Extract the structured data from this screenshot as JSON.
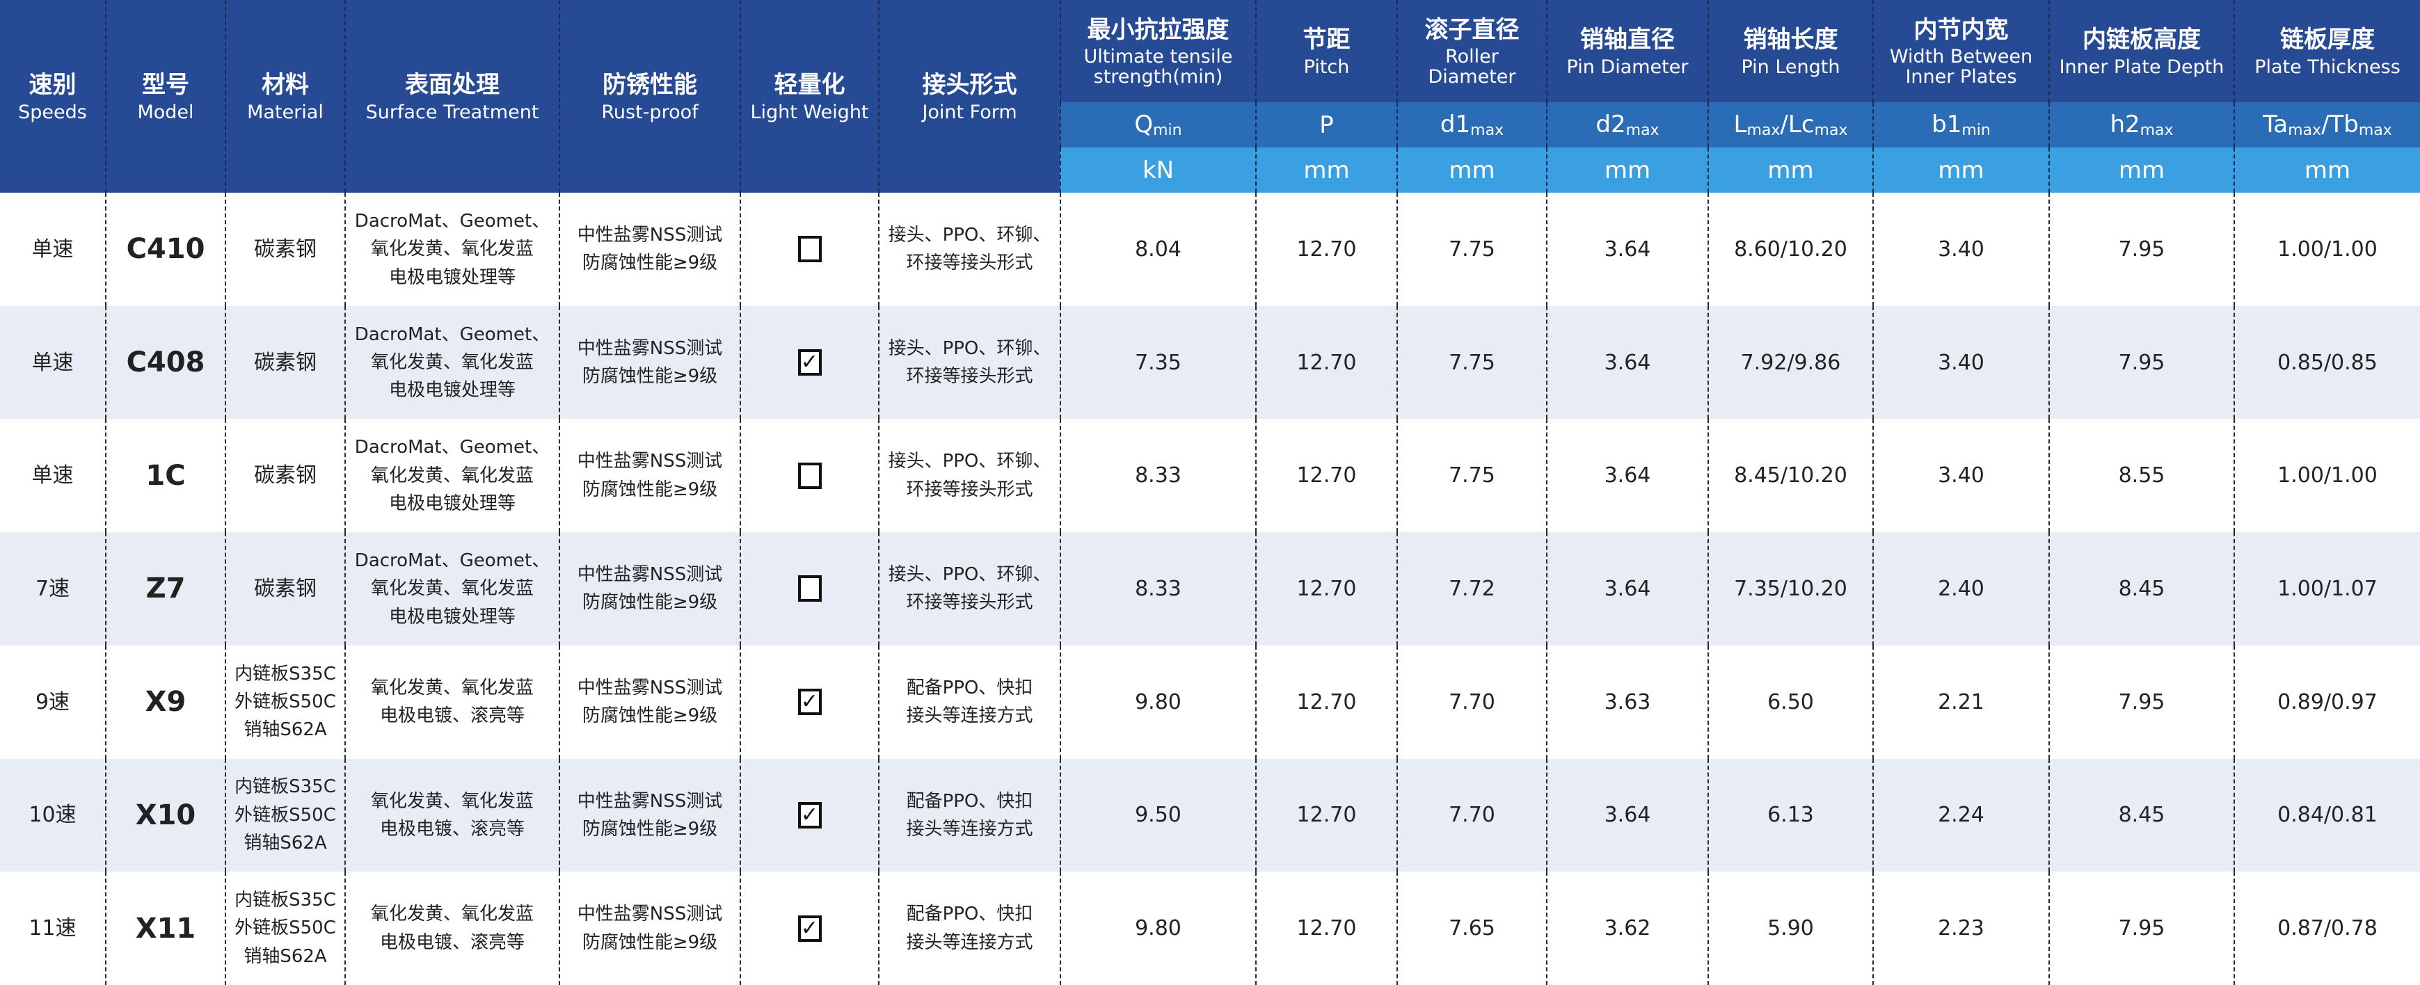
{
  "colors": {
    "header_dark": "#264a93",
    "header_mid": "#2a6cb5",
    "header_light": "#3aa0e2",
    "row_alt": "#e8edf5"
  },
  "left_headers": [
    {
      "zh": "速别",
      "en": "Speeds"
    },
    {
      "zh": "型号",
      "en": "Model"
    },
    {
      "zh": "材料",
      "en": "Material"
    },
    {
      "zh": "表面处理",
      "en": "Surface Treatment"
    },
    {
      "zh": "防锈性能",
      "en": "Rust-proof"
    },
    {
      "zh": "轻量化",
      "en": "Light Weight"
    },
    {
      "zh": "接头形式",
      "en": "Joint Form"
    }
  ],
  "right_headers": [
    {
      "zh": "最小抗拉强度",
      "en": "Ultimate tensile strength(min)",
      "symbol": [
        {
          "t": "Q"
        },
        {
          "sub": "min"
        }
      ],
      "unit": "kN"
    },
    {
      "zh": "节距",
      "en": "Pitch",
      "symbol": [
        {
          "t": "P"
        }
      ],
      "unit": "mm"
    },
    {
      "zh": "滚子直径",
      "en": "Roller Diameter",
      "symbol": [
        {
          "t": "d1"
        },
        {
          "sub": "max"
        }
      ],
      "unit": "mm"
    },
    {
      "zh": "销轴直径",
      "en": "Pin Diameter",
      "symbol": [
        {
          "t": "d2"
        },
        {
          "sub": "max"
        }
      ],
      "unit": "mm"
    },
    {
      "zh": "销轴长度",
      "en": "Pin Length",
      "symbol": [
        {
          "t": "L"
        },
        {
          "sub": "max"
        },
        {
          "t": "/Lc"
        },
        {
          "sub": "max"
        }
      ],
      "unit": "mm"
    },
    {
      "zh": "内节内宽",
      "en": "Width Between Inner Plates",
      "symbol": [
        {
          "t": "b1"
        },
        {
          "sub": "min"
        }
      ],
      "unit": "mm"
    },
    {
      "zh": "内链板高度",
      "en": "Inner Plate Depth",
      "symbol": [
        {
          "t": "h2"
        },
        {
          "sub": "max"
        }
      ],
      "unit": "mm"
    },
    {
      "zh": "链板厚度",
      "en": "Plate Thickness",
      "symbol": [
        {
          "t": "Ta"
        },
        {
          "sub": "max"
        },
        {
          "t": "/Tb"
        },
        {
          "sub": "max"
        }
      ],
      "unit": "mm"
    }
  ],
  "rows": [
    {
      "speed": "单速",
      "model": "C410",
      "material": [
        "碳素钢"
      ],
      "surface": [
        "DacroMat、Geomet、",
        "氧化发黄、氧化发蓝",
        "电极电镀处理等"
      ],
      "rust": [
        "中性盐雾NSS测试",
        "防腐蚀性能≥9级"
      ],
      "light_weight": false,
      "joint": [
        "接头、PPO、环铆、",
        "环接等接头形式"
      ],
      "values": [
        "8.04",
        "12.70",
        "7.75",
        "3.64",
        "8.60/10.20",
        "3.40",
        "7.95",
        "1.00/1.00"
      ]
    },
    {
      "speed": "单速",
      "model": "C408",
      "material": [
        "碳素钢"
      ],
      "surface": [
        "DacroMat、Geomet、",
        "氧化发黄、氧化发蓝",
        "电极电镀处理等"
      ],
      "rust": [
        "中性盐雾NSS测试",
        "防腐蚀性能≥9级"
      ],
      "light_weight": true,
      "joint": [
        "接头、PPO、环铆、",
        "环接等接头形式"
      ],
      "values": [
        "7.35",
        "12.70",
        "7.75",
        "3.64",
        "7.92/9.86",
        "3.40",
        "7.95",
        "0.85/0.85"
      ]
    },
    {
      "speed": "单速",
      "model": "1C",
      "material": [
        "碳素钢"
      ],
      "surface": [
        "DacroMat、Geomet、",
        "氧化发黄、氧化发蓝",
        "电极电镀处理等"
      ],
      "rust": [
        "中性盐雾NSS测试",
        "防腐蚀性能≥9级"
      ],
      "light_weight": false,
      "joint": [
        "接头、PPO、环铆、",
        "环接等接头形式"
      ],
      "values": [
        "8.33",
        "12.70",
        "7.75",
        "3.64",
        "8.45/10.20",
        "3.40",
        "8.55",
        "1.00/1.00"
      ]
    },
    {
      "speed": "7速",
      "model": "Z7",
      "material": [
        "碳素钢"
      ],
      "surface": [
        "DacroMat、Geomet、",
        "氧化发黄、氧化发蓝",
        "电极电镀处理等"
      ],
      "rust": [
        "中性盐雾NSS测试",
        "防腐蚀性能≥9级"
      ],
      "light_weight": false,
      "joint": [
        "接头、PPO、环铆、",
        "环接等接头形式"
      ],
      "values": [
        "8.33",
        "12.70",
        "7.72",
        "3.64",
        "7.35/10.20",
        "2.40",
        "8.45",
        "1.00/1.07"
      ]
    },
    {
      "speed": "9速",
      "model": "X9",
      "material": [
        "内链板S35C",
        "外链板S50C",
        "销轴S62A"
      ],
      "surface": [
        "氧化发黄、氧化发蓝",
        "电极电镀、滚亮等"
      ],
      "rust": [
        "中性盐雾NSS测试",
        "防腐蚀性能≥9级"
      ],
      "light_weight": true,
      "joint": [
        "配备PPO、快扣",
        "接头等连接方式"
      ],
      "values": [
        "9.80",
        "12.70",
        "7.70",
        "3.63",
        "6.50",
        "2.21",
        "7.95",
        "0.89/0.97"
      ]
    },
    {
      "speed": "10速",
      "model": "X10",
      "material": [
        "内链板S35C",
        "外链板S50C",
        "销轴S62A"
      ],
      "surface": [
        "氧化发黄、氧化发蓝",
        "电极电镀、滚亮等"
      ],
      "rust": [
        "中性盐雾NSS测试",
        "防腐蚀性能≥9级"
      ],
      "light_weight": true,
      "joint": [
        "配备PPO、快扣",
        "接头等连接方式"
      ],
      "values": [
        "9.50",
        "12.70",
        "7.70",
        "3.64",
        "6.13",
        "2.24",
        "8.45",
        "0.84/0.81"
      ]
    },
    {
      "speed": "11速",
      "model": "X11",
      "material": [
        "内链板S35C",
        "外链板S50C",
        "销轴S62A"
      ],
      "surface": [
        "氧化发黄、氧化发蓝",
        "电极电镀、滚亮等"
      ],
      "rust": [
        "中性盐雾NSS测试",
        "防腐蚀性能≥9级"
      ],
      "light_weight": true,
      "joint": [
        "配备PPO、快扣",
        "接头等连接方式"
      ],
      "values": [
        "9.80",
        "12.70",
        "7.65",
        "3.62",
        "5.90",
        "2.23",
        "7.95",
        "0.87/0.78"
      ]
    }
  ],
  "checkmark_glyph": "✓"
}
